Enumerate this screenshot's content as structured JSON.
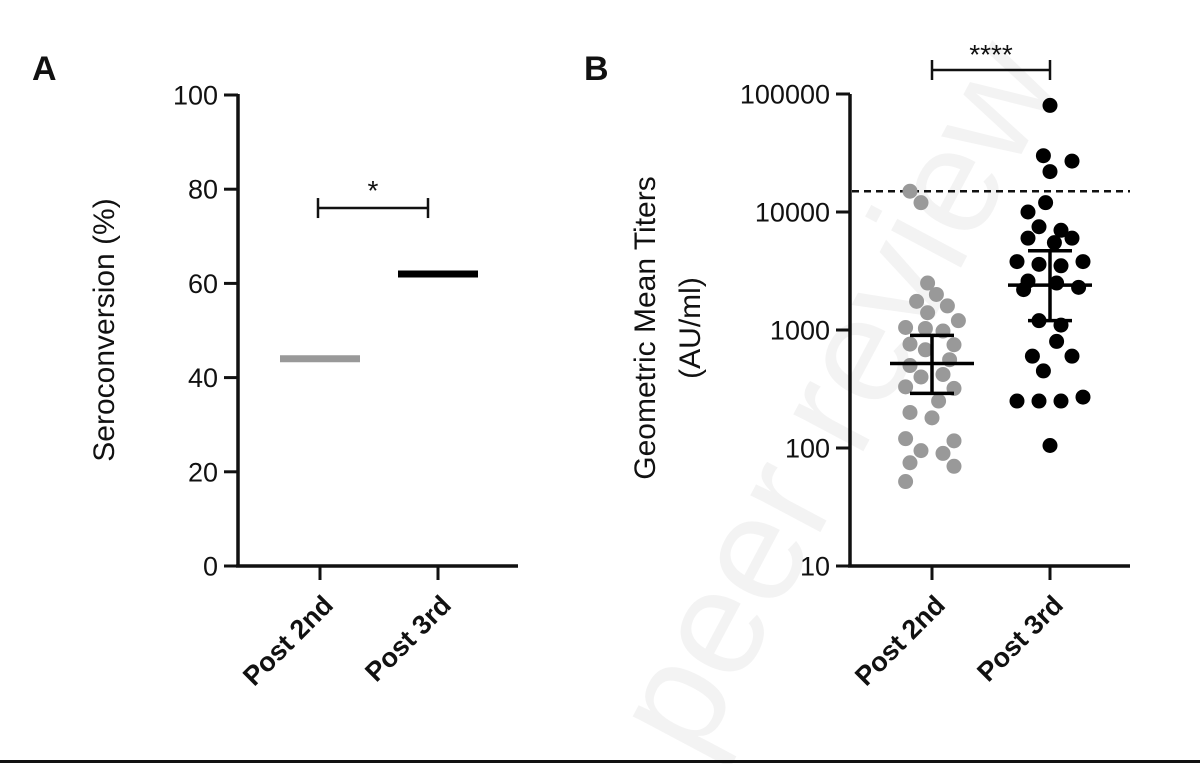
{
  "watermark": "peer review",
  "chart_data": [
    {
      "panel": "A",
      "type": "bar",
      "ylabel": "Seroconversion (%)",
      "ylim": [
        0,
        100
      ],
      "yticks": [
        "0",
        "20",
        "40",
        "60",
        "80",
        "100"
      ],
      "categories": [
        "Post 2nd",
        "Post 3rd"
      ],
      "values": [
        44,
        62
      ],
      "colors": [
        "#999999",
        "#000000"
      ],
      "significance": [
        {
          "from": "Post 2nd",
          "to": "Post 3rd",
          "label": "*",
          "y": 76
        }
      ]
    },
    {
      "panel": "B",
      "type": "scatter",
      "ylabel": "Geometric Mean Titers",
      "ylabel_unit": "(AU/ml)",
      "yscale": "log",
      "ylim": [
        10,
        100000
      ],
      "yticks": [
        "10",
        "100",
        "1000",
        "10000",
        "100000"
      ],
      "categories": [
        "Post 2nd",
        "Post 3rd"
      ],
      "reference_line": 15000,
      "significance": [
        {
          "from": "Post 2nd",
          "to": "Post 3rd",
          "label": "****",
          "y": 145000
        }
      ],
      "series": [
        {
          "category": "Post 2nd",
          "color": "#999999",
          "gmt": 520,
          "ci_low": 290,
          "ci_high": 900,
          "points": [
            {
              "dx": -0.1,
              "v": 15000
            },
            {
              "dx": -0.05,
              "v": 12000
            },
            {
              "dx": -0.02,
              "v": 2500
            },
            {
              "dx": 0.02,
              "v": 2000
            },
            {
              "dx": -0.07,
              "v": 1750
            },
            {
              "dx": 0.07,
              "v": 1600
            },
            {
              "dx": -0.02,
              "v": 1400
            },
            {
              "dx": 0.12,
              "v": 1200
            },
            {
              "dx": -0.12,
              "v": 1050
            },
            {
              "dx": -0.03,
              "v": 1030
            },
            {
              "dx": 0.05,
              "v": 980
            },
            {
              "dx": -0.1,
              "v": 760
            },
            {
              "dx": 0.1,
              "v": 750
            },
            {
              "dx": -0.03,
              "v": 680
            },
            {
              "dx": 0.08,
              "v": 560
            },
            {
              "dx": -0.1,
              "v": 500
            },
            {
              "dx": 0.05,
              "v": 420
            },
            {
              "dx": -0.05,
              "v": 400
            },
            {
              "dx": -0.12,
              "v": 330
            },
            {
              "dx": 0.1,
              "v": 320
            },
            {
              "dx": 0.03,
              "v": 250
            },
            {
              "dx": -0.1,
              "v": 200
            },
            {
              "dx": 0.0,
              "v": 180
            },
            {
              "dx": -0.12,
              "v": 120
            },
            {
              "dx": 0.1,
              "v": 115
            },
            {
              "dx": -0.05,
              "v": 95
            },
            {
              "dx": 0.05,
              "v": 90
            },
            {
              "dx": -0.1,
              "v": 75
            },
            {
              "dx": 0.1,
              "v": 70
            },
            {
              "dx": -0.12,
              "v": 52
            }
          ]
        },
        {
          "category": "Post 3rd",
          "color": "#000000",
          "gmt": 2400,
          "ci_low": 1200,
          "ci_high": 4700,
          "points": [
            {
              "dx": 0.0,
              "v": 80000
            },
            {
              "dx": -0.03,
              "v": 30000
            },
            {
              "dx": 0.1,
              "v": 27000
            },
            {
              "dx": 0.0,
              "v": 22000
            },
            {
              "dx": -0.02,
              "v": 12000
            },
            {
              "dx": -0.1,
              "v": 10000
            },
            {
              "dx": -0.05,
              "v": 7500
            },
            {
              "dx": 0.05,
              "v": 7000
            },
            {
              "dx": -0.1,
              "v": 6000
            },
            {
              "dx": 0.1,
              "v": 6000
            },
            {
              "dx": 0.02,
              "v": 5500
            },
            {
              "dx": -0.15,
              "v": 3800
            },
            {
              "dx": 0.15,
              "v": 3800
            },
            {
              "dx": -0.05,
              "v": 3600
            },
            {
              "dx": 0.05,
              "v": 3500
            },
            {
              "dx": -0.1,
              "v": 2600
            },
            {
              "dx": 0.03,
              "v": 2500
            },
            {
              "dx": 0.13,
              "v": 2300
            },
            {
              "dx": -0.12,
              "v": 2200
            },
            {
              "dx": -0.05,
              "v": 1200
            },
            {
              "dx": 0.05,
              "v": 1100
            },
            {
              "dx": 0.03,
              "v": 800
            },
            {
              "dx": -0.08,
              "v": 600
            },
            {
              "dx": 0.1,
              "v": 600
            },
            {
              "dx": -0.03,
              "v": 450
            },
            {
              "dx": -0.15,
              "v": 250
            },
            {
              "dx": -0.05,
              "v": 250
            },
            {
              "dx": 0.05,
              "v": 250
            },
            {
              "dx": 0.15,
              "v": 270
            },
            {
              "dx": 0.0,
              "v": 105
            }
          ]
        }
      ]
    }
  ]
}
